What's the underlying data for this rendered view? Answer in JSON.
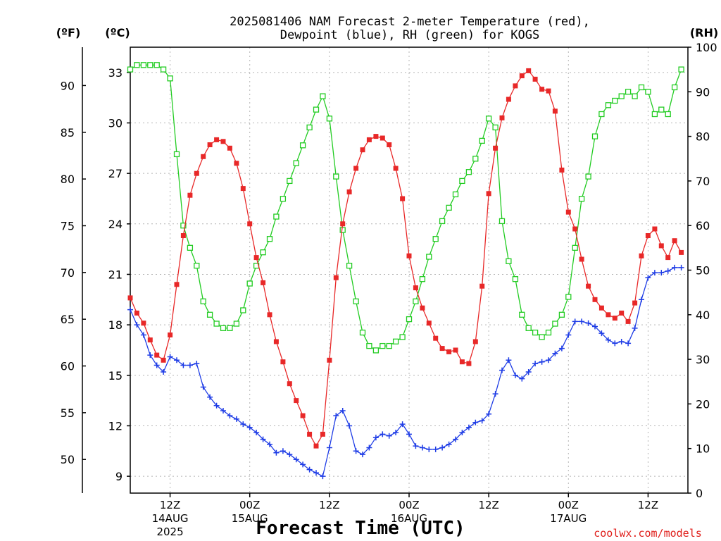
{
  "chart_data": {
    "type": "line",
    "title_lines": [
      "2025081406 NAM Forecast 2-meter Temperature (red),",
      "Dewpoint (blue), RH (green) for KOGS"
    ],
    "xlabel": "Forecast Time (UTC)",
    "credit": "coolwx.com/models",
    "units": {
      "f": "(ºF)",
      "c": "(ºC)",
      "rh": "(RH)"
    },
    "axes": {
      "c": {
        "range": [
          8.0,
          34.5
        ],
        "ticks": [
          9,
          12,
          15,
          18,
          21,
          24,
          27,
          30,
          33
        ]
      },
      "f": {
        "ticks": [
          50,
          55,
          60,
          65,
          70,
          75,
          80,
          85,
          90
        ]
      },
      "rh": {
        "range": [
          0,
          100
        ],
        "ticks": [
          0,
          10,
          20,
          30,
          40,
          50,
          60,
          70,
          80,
          90,
          100
        ]
      },
      "x": {
        "range": [
          0,
          84
        ],
        "unit": "forecast hour from 2025-08-14 06Z"
      }
    },
    "x_ticks": [
      {
        "hour": 6,
        "label": "12Z",
        "date": "14AUG",
        "year": "2025"
      },
      {
        "hour": 18,
        "label": "00Z",
        "date": "15AUG",
        "year": ""
      },
      {
        "hour": 30,
        "label": "12Z",
        "date": "",
        "year": ""
      },
      {
        "hour": 42,
        "label": "00Z",
        "date": "16AUG",
        "year": ""
      },
      {
        "hour": 54,
        "label": "12Z",
        "date": "",
        "year": ""
      },
      {
        "hour": 66,
        "label": "00Z",
        "date": "17AUG",
        "year": ""
      },
      {
        "hour": 78,
        "label": "12Z",
        "date": "",
        "year": ""
      }
    ],
    "grid": true,
    "colors": {
      "temp": "#e82828",
      "dew": "#1e3ce6",
      "rh": "#22cc22",
      "grid": "#b4b4b4"
    },
    "series": [
      {
        "name": "Temperature",
        "axis": "c",
        "marker": "filled-square",
        "values": [
          19.6,
          18.7,
          18.1,
          17.1,
          16.2,
          15.9,
          17.4,
          20.4,
          23.3,
          25.7,
          27.0,
          28.0,
          28.7,
          29.0,
          28.9,
          28.5,
          27.6,
          26.1,
          24.0,
          22.0,
          20.5,
          18.6,
          17.0,
          15.8,
          14.5,
          13.5,
          12.6,
          11.5,
          10.8,
          11.5,
          15.9,
          20.8,
          24.0,
          25.9,
          27.3,
          28.4,
          29.0,
          29.2,
          29.1,
          28.7,
          27.3,
          25.5,
          22.1,
          20.2,
          19.0,
          18.1,
          17.2,
          16.6,
          16.4,
          16.5,
          15.8,
          15.7,
          17.0,
          20.3,
          25.8,
          28.5,
          30.3,
          31.4,
          32.2,
          32.8,
          33.1,
          32.6,
          32.0,
          31.9,
          30.7,
          27.2,
          24.7,
          23.7,
          21.9,
          20.3,
          19.5,
          19.0,
          18.6,
          18.4,
          18.7,
          18.2,
          19.3,
          22.1,
          23.3,
          23.7,
          22.7,
          22.0,
          23.0,
          22.3
        ]
      },
      {
        "name": "Dewpoint",
        "axis": "c",
        "marker": "plus",
        "values": [
          18.9,
          18.0,
          17.4,
          16.2,
          15.6,
          15.2,
          16.1,
          15.9,
          15.6,
          15.6,
          15.7,
          14.3,
          13.7,
          13.2,
          12.9,
          12.6,
          12.4,
          12.1,
          11.9,
          11.6,
          11.2,
          10.9,
          10.4,
          10.5,
          10.3,
          10.0,
          9.7,
          9.4,
          9.2,
          9.0,
          10.7,
          12.6,
          12.9,
          12.0,
          10.5,
          10.3,
          10.7,
          11.3,
          11.5,
          11.4,
          11.6,
          12.1,
          11.5,
          10.8,
          10.7,
          10.6,
          10.6,
          10.7,
          10.9,
          11.2,
          11.6,
          11.9,
          12.2,
          12.3,
          12.7,
          13.9,
          15.3,
          15.9,
          15.0,
          14.8,
          15.2,
          15.7,
          15.8,
          15.9,
          16.3,
          16.6,
          17.4,
          18.2,
          18.2,
          18.1,
          17.9,
          17.5,
          17.1,
          16.9,
          17.0,
          16.9,
          17.8,
          19.5,
          20.8,
          21.1,
          21.1,
          21.2,
          21.4,
          21.4
        ]
      },
      {
        "name": "RH",
        "axis": "rh",
        "marker": "open-square",
        "values": [
          95,
          96,
          96,
          96,
          96,
          95,
          93,
          76,
          60,
          55,
          51,
          43,
          40,
          38,
          37,
          37,
          38,
          41,
          47,
          51,
          54,
          57,
          62,
          66,
          70,
          74,
          78,
          82,
          86,
          89,
          84,
          71,
          59,
          51,
          43,
          36,
          33,
          32,
          33,
          33,
          34,
          35,
          39,
          43,
          48,
          53,
          57,
          61,
          64,
          67,
          70,
          72,
          75,
          79,
          84,
          82,
          61,
          52,
          48,
          40,
          37,
          36,
          35,
          36,
          38,
          40,
          44,
          55,
          66,
          71,
          80,
          85,
          87,
          88,
          89,
          90,
          89,
          91,
          90,
          85,
          86,
          85,
          91,
          95
        ]
      }
    ]
  }
}
